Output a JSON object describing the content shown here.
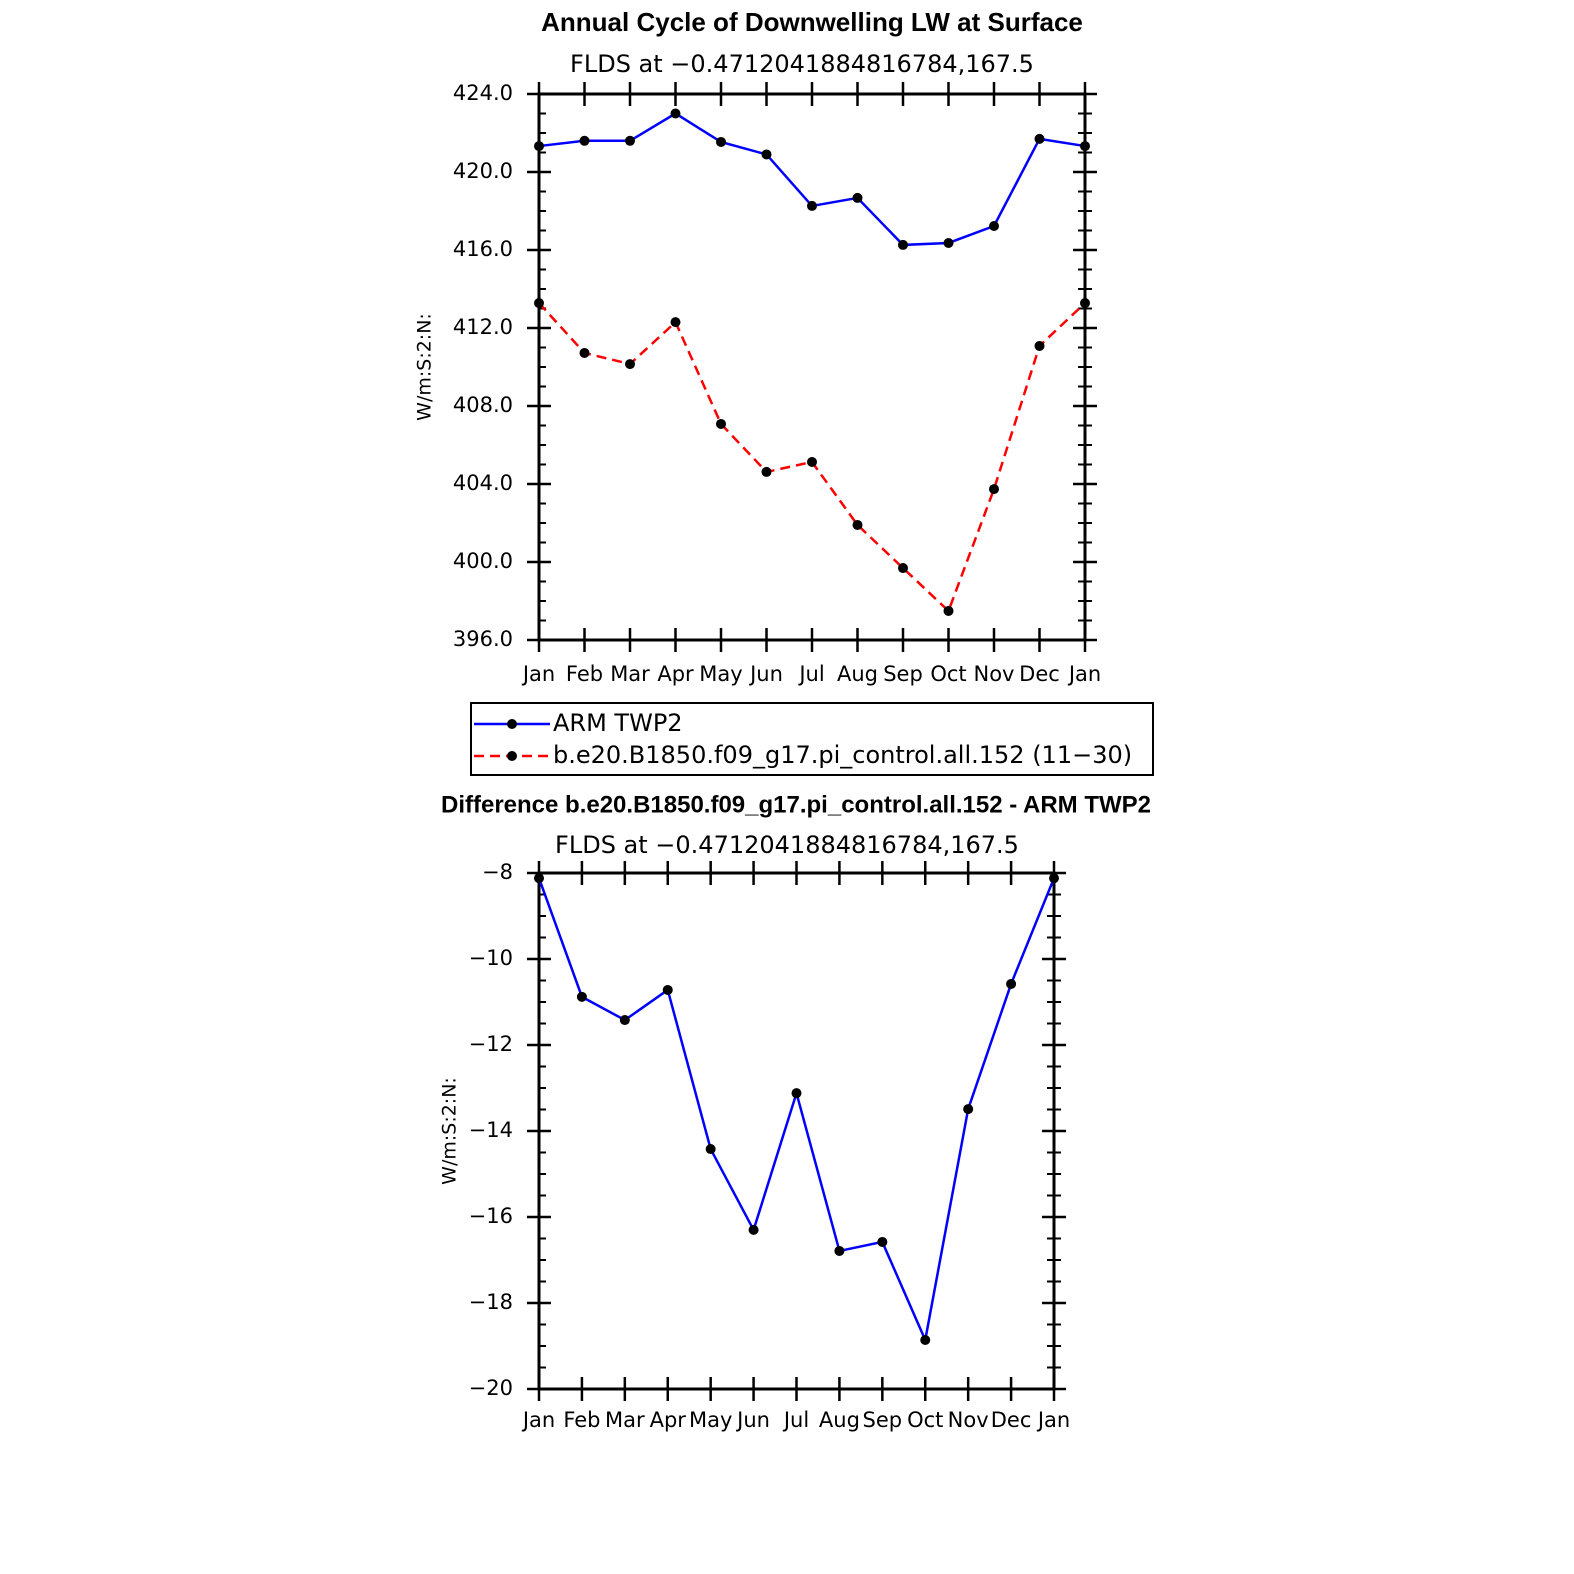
{
  "chart_data": [
    {
      "type": "line",
      "title": "Annual Cycle of Downwelling LW at Surface",
      "subtitle": "FLDS at −0.4712041884816784,167.5",
      "y_label": "W/m:S:2:N:",
      "categories": [
        "Jan",
        "Feb",
        "Mar",
        "Apr",
        "May",
        "Jun",
        "Jul",
        "Aug",
        "Sep",
        "Oct",
        "Nov",
        "Dec",
        "Jan"
      ],
      "series": [
        {
          "name": "ARM TWP2",
          "color": "#0000ff",
          "dashed": false,
          "values": [
            421.33,
            421.6,
            421.6,
            423.0,
            421.54,
            420.9,
            418.26,
            418.67,
            416.26,
            416.36,
            417.23,
            421.7,
            421.33
          ]
        },
        {
          "name": "b.e20.B1850.f09_g17.pi_control.all.152 (11−30)",
          "color": "#ff0000",
          "dashed": true,
          "values": [
            413.28,
            410.72,
            410.15,
            412.3,
            407.08,
            404.62,
            405.13,
            401.9,
            399.69,
            397.49,
            403.74,
            411.08,
            413.28
          ]
        }
      ],
      "ylim": [
        396,
        424
      ],
      "yticks": [
        {
          "value": 396,
          "label": "396.0"
        },
        {
          "value": 400,
          "label": "400.0"
        },
        {
          "value": 404,
          "label": "404.0"
        },
        {
          "value": 408,
          "label": "408.0"
        },
        {
          "value": 412,
          "label": "412.0"
        },
        {
          "value": 416,
          "label": "416.0"
        },
        {
          "value": 420,
          "label": "420.0"
        },
        {
          "value": 424,
          "label": "424.0"
        }
      ],
      "legend": true
    },
    {
      "type": "line",
      "title": "Difference b.e20.B1850.f09_g17.pi_control.all.152 - ARM TWP2",
      "subtitle": "FLDS at −0.4712041884816784,167.5",
      "y_label": "W/m:S:2:N:",
      "categories": [
        "Jan",
        "Feb",
        "Mar",
        "Apr",
        "May",
        "Jun",
        "Jul",
        "Aug",
        "Sep",
        "Oct",
        "Nov",
        "Dec",
        "Jan"
      ],
      "series": [
        {
          "color": "#0000ff",
          "dashed": false,
          "values": [
            -8.12,
            -10.88,
            -11.42,
            -10.72,
            -14.42,
            -16.3,
            -13.12,
            -16.79,
            -16.58,
            -18.86,
            -13.49,
            -10.58,
            -8.12
          ]
        }
      ],
      "ylim": [
        -20,
        -8
      ],
      "yticks": [
        {
          "value": -20,
          "label": "−20"
        },
        {
          "value": -18,
          "label": "−18"
        },
        {
          "value": -16,
          "label": "−16"
        },
        {
          "value": -14,
          "label": "−14"
        },
        {
          "value": -12,
          "label": "−12"
        },
        {
          "value": -10,
          "label": "−10"
        },
        {
          "value": -8,
          "label": "−8"
        }
      ],
      "legend": false
    }
  ]
}
